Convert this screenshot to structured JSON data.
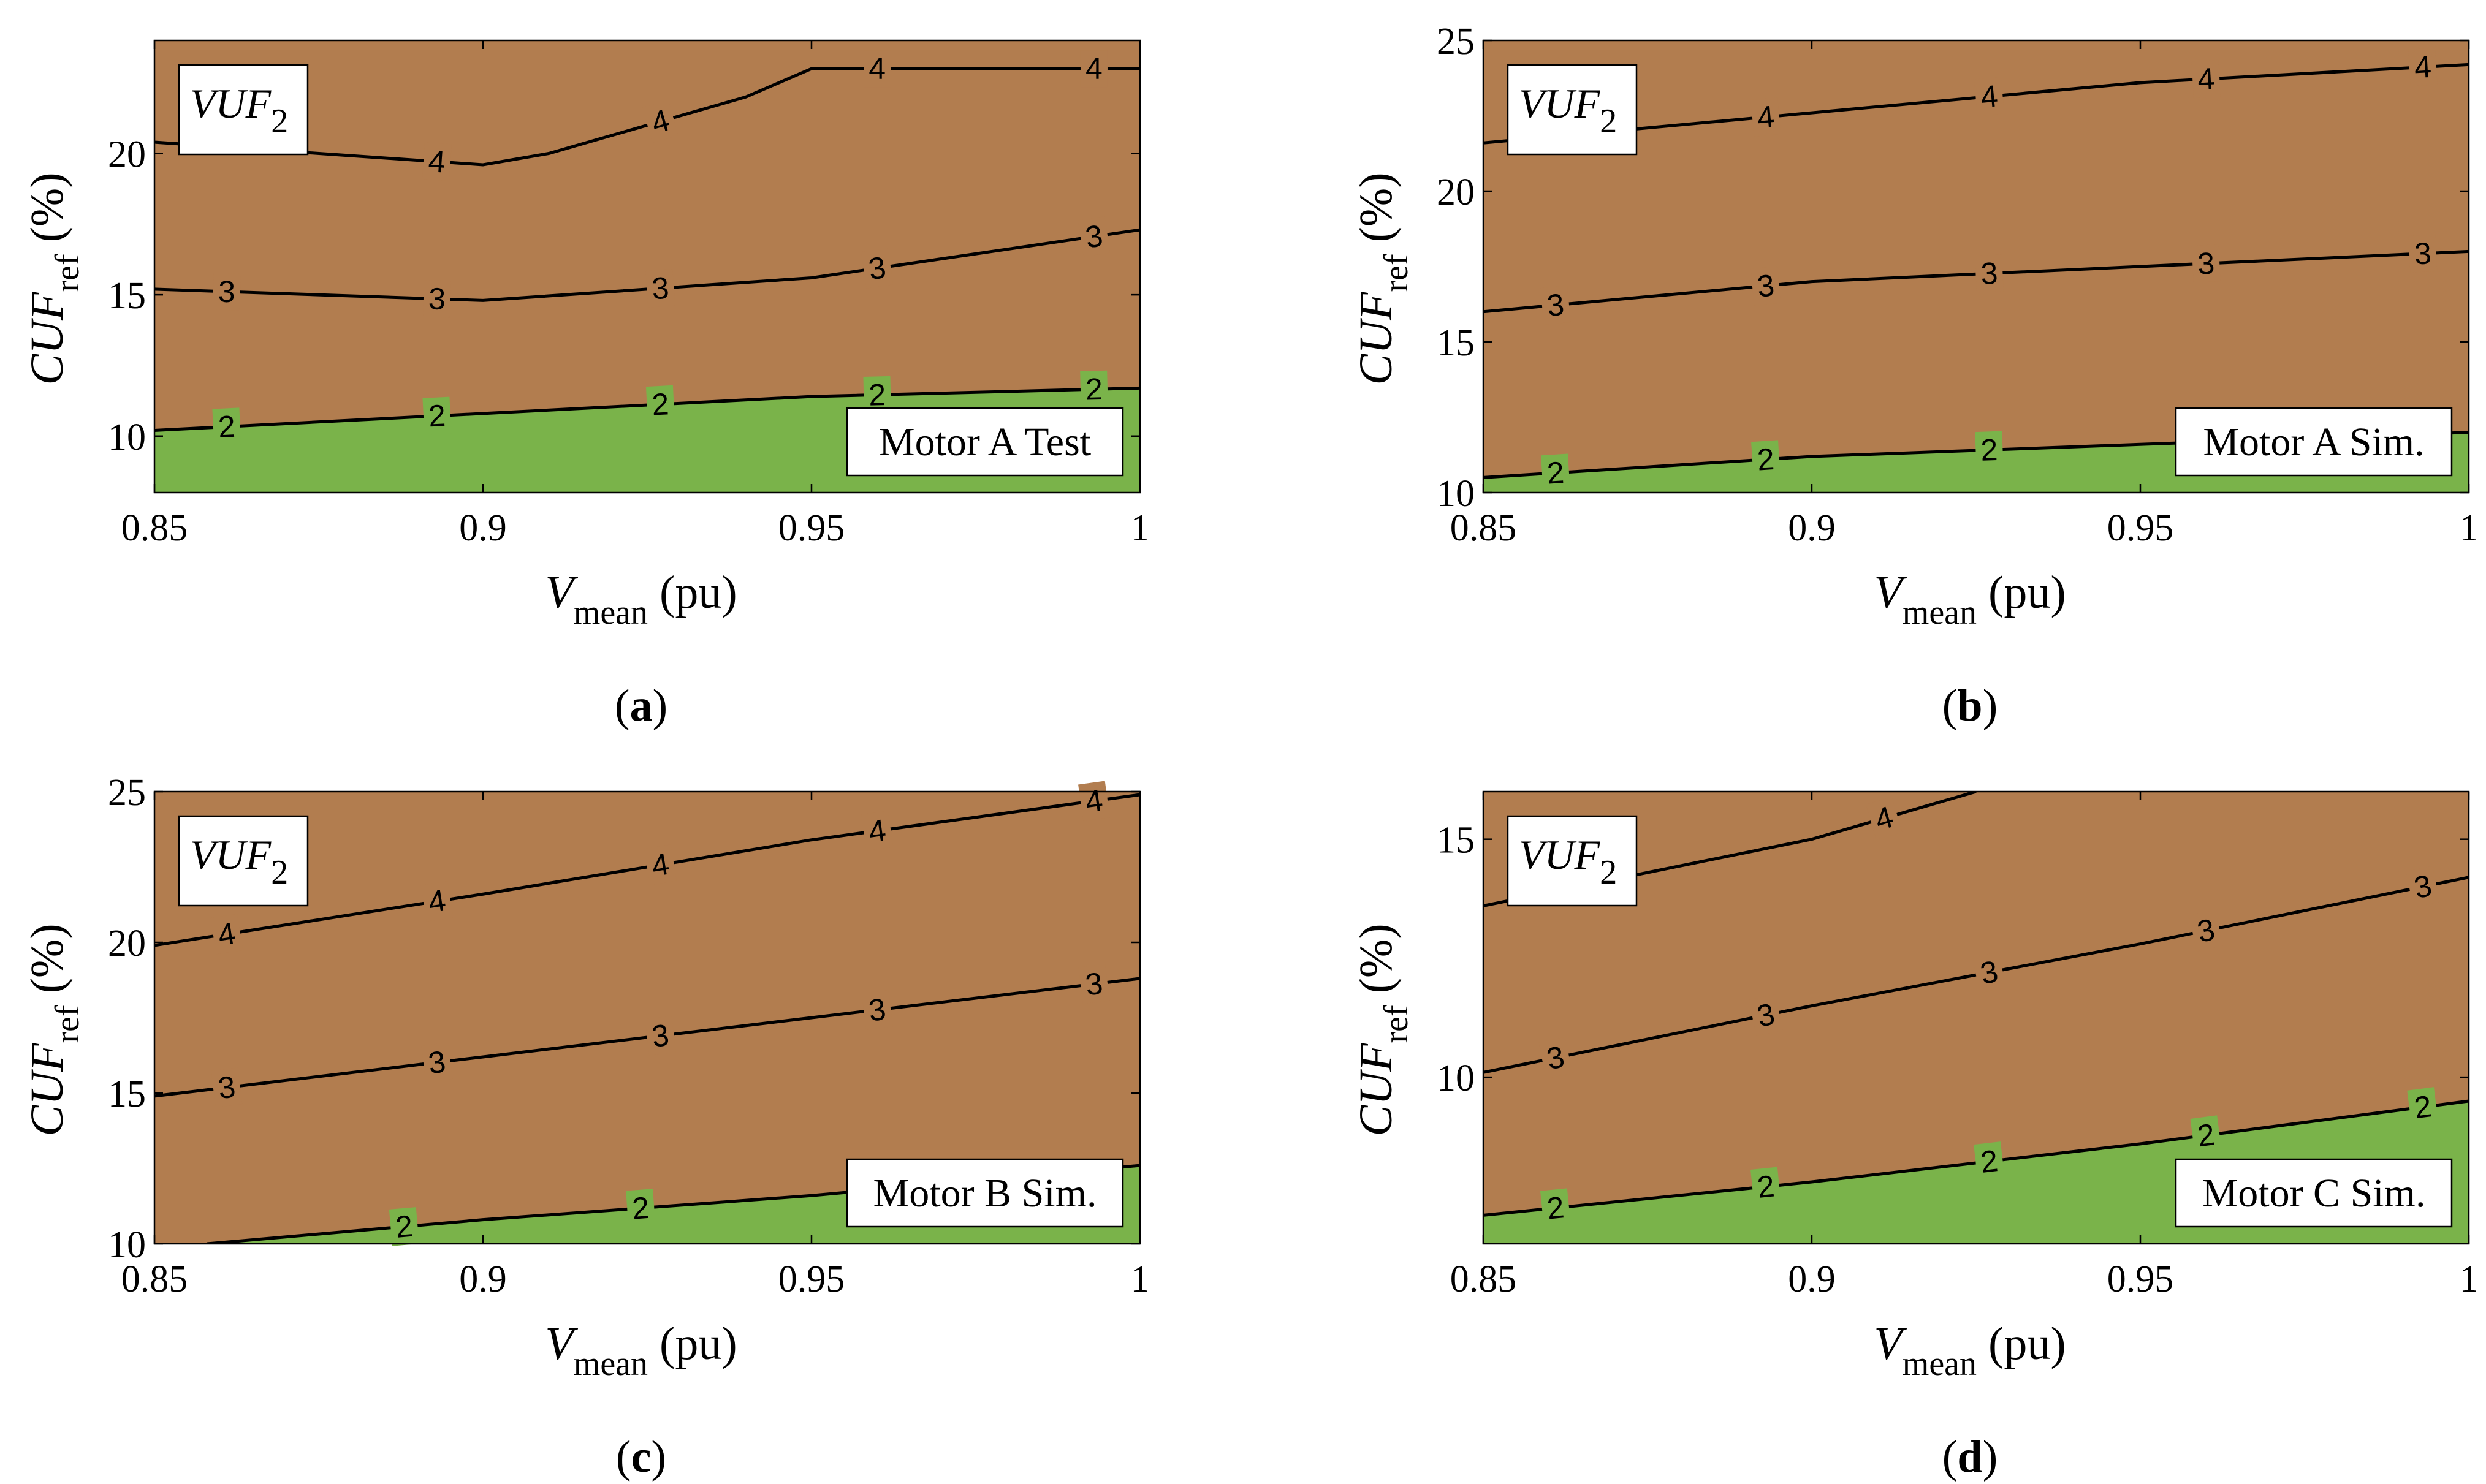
{
  "colors": {
    "upper_region": "#b27d4f",
    "lower_region": "#7ab34a",
    "contour": "#000000"
  },
  "chart_data": [
    {
      "type": "contour",
      "panel_label": "a",
      "box_label": "Motor A Test",
      "legend_title": "VUF",
      "legend_subscript": "2",
      "xlabel": "V",
      "xlabel_sub": "mean",
      "xlabel_unit": " (pu)",
      "ylabel": "CUF",
      "ylabel_sub": "ref",
      "ylabel_unit": " (%)",
      "xlim": [
        0.85,
        1.0
      ],
      "ylim": [
        8,
        24
      ],
      "xticks": [
        "0.85",
        "0.9",
        "0.95",
        "1"
      ],
      "yticks": [
        "10",
        "15",
        "20"
      ],
      "contours": [
        {
          "level": "2",
          "points": [
            [
              0.85,
              10.2
            ],
            [
              0.9,
              10.8
            ],
            [
              0.95,
              11.4
            ],
            [
              1.0,
              11.7
            ]
          ]
        },
        {
          "level": "3",
          "points": [
            [
              0.85,
              15.2
            ],
            [
              0.9,
              14.8
            ],
            [
              0.95,
              15.6
            ],
            [
              1.0,
              17.3
            ]
          ]
        },
        {
          "level": "4",
          "points": [
            [
              0.85,
              20.4
            ],
            [
              0.9,
              19.6
            ],
            [
              0.91,
              20.0
            ],
            [
              0.925,
              21.0
            ],
            [
              0.94,
              22.0
            ],
            [
              0.95,
              23.0
            ],
            [
              1.0,
              23.0
            ]
          ]
        }
      ],
      "label_positions": {
        "2": [
          0.861,
          0.893,
          0.927,
          0.96,
          0.993
        ],
        "3": [
          0.861,
          0.893,
          0.927,
          0.96,
          0.993
        ],
        "4": [
          0.893,
          0.927,
          0.96,
          0.993
        ]
      }
    },
    {
      "type": "contour",
      "panel_label": "b",
      "box_label": "Motor A Sim.",
      "legend_title": "VUF",
      "legend_subscript": "2",
      "xlabel": "V",
      "xlabel_sub": "mean",
      "xlabel_unit": " (pu)",
      "ylabel": "CUF",
      "ylabel_sub": "ref",
      "ylabel_unit": " (%)",
      "xlim": [
        0.85,
        1.0
      ],
      "ylim": [
        10,
        25
      ],
      "xticks": [
        "0.85",
        "0.9",
        "0.95",
        "1"
      ],
      "yticks": [
        "10",
        "15",
        "20",
        "25"
      ],
      "contours": [
        {
          "level": "2",
          "points": [
            [
              0.85,
              10.5
            ],
            [
              0.9,
              11.2
            ],
            [
              0.95,
              11.6
            ],
            [
              1.0,
              12.0
            ]
          ]
        },
        {
          "level": "3",
          "points": [
            [
              0.85,
              16.0
            ],
            [
              0.9,
              17.0
            ],
            [
              0.95,
              17.5
            ],
            [
              1.0,
              18.0
            ]
          ]
        },
        {
          "level": "4",
          "points": [
            [
              0.85,
              21.6
            ],
            [
              0.9,
              22.6
            ],
            [
              0.95,
              23.6
            ],
            [
              1.0,
              24.2
            ]
          ]
        }
      ],
      "label_positions": {
        "2": [
          0.861,
          0.893,
          0.927,
          0.96,
          0.993
        ],
        "3": [
          0.861,
          0.893,
          0.927,
          0.96,
          0.993
        ],
        "4": [
          0.893,
          0.927,
          0.96,
          0.993
        ]
      }
    },
    {
      "type": "contour",
      "panel_label": "c",
      "box_label": "Motor B Sim.",
      "legend_title": "VUF",
      "legend_subscript": "2",
      "xlabel": "V",
      "xlabel_sub": "mean",
      "xlabel_unit": " (pu)",
      "ylabel": "CUF",
      "ylabel_sub": "ref",
      "ylabel_unit": " (%)",
      "xlim": [
        0.85,
        1.0
      ],
      "ylim": [
        10,
        25
      ],
      "xticks": [
        "0.85",
        "0.9",
        "0.95",
        "1"
      ],
      "yticks": [
        "10",
        "15",
        "20",
        "25"
      ],
      "contours": [
        {
          "level": "2",
          "points": [
            [
              0.858,
              10.0
            ],
            [
              0.9,
              10.8
            ],
            [
              0.95,
              11.6
            ],
            [
              1.0,
              12.6
            ]
          ]
        },
        {
          "level": "3",
          "points": [
            [
              0.85,
              14.9
            ],
            [
              0.9,
              16.2
            ],
            [
              0.95,
              17.5
            ],
            [
              1.0,
              18.8
            ]
          ]
        },
        {
          "level": "4",
          "points": [
            [
              0.85,
              19.9
            ],
            [
              0.9,
              21.6
            ],
            [
              0.95,
              23.4
            ],
            [
              1.0,
              24.9
            ]
          ]
        }
      ],
      "label_positions": {
        "2": [
          0.888,
          0.924
        ],
        "3": [
          0.861,
          0.893,
          0.927,
          0.96,
          0.993
        ],
        "4": [
          0.861,
          0.893,
          0.927,
          0.96,
          0.993
        ]
      }
    },
    {
      "type": "contour",
      "panel_label": "d",
      "box_label": "Motor C Sim.",
      "legend_title": "VUF",
      "legend_subscript": "2",
      "xlabel": "V",
      "xlabel_sub": "mean",
      "xlabel_unit": " (pu)",
      "ylabel": "CUF",
      "ylabel_sub": "ref",
      "ylabel_unit": " (%)",
      "xlim": [
        0.85,
        1.0
      ],
      "ylim": [
        6.5,
        16
      ],
      "xticks": [
        "0.85",
        "0.9",
        "0.95",
        "1"
      ],
      "yticks": [
        "10",
        "15"
      ],
      "contours": [
        {
          "level": "2",
          "points": [
            [
              0.85,
              7.1
            ],
            [
              0.9,
              7.8
            ],
            [
              0.95,
              8.6
            ],
            [
              1.0,
              9.5
            ]
          ]
        },
        {
          "level": "3",
          "points": [
            [
              0.85,
              10.1
            ],
            [
              0.9,
              11.5
            ],
            [
              0.95,
              12.8
            ],
            [
              1.0,
              14.2
            ]
          ]
        },
        {
          "level": "4",
          "points": [
            [
              0.85,
              13.6
            ],
            [
              0.9,
              15.0
            ],
            [
              0.925,
              16.0
            ]
          ]
        }
      ],
      "label_positions": {
        "2": [
          0.861,
          0.893,
          0.927,
          0.96,
          0.993
        ],
        "3": [
          0.861,
          0.893,
          0.927,
          0.96,
          0.993
        ],
        "4": [
          0.871,
          0.911
        ]
      }
    }
  ]
}
